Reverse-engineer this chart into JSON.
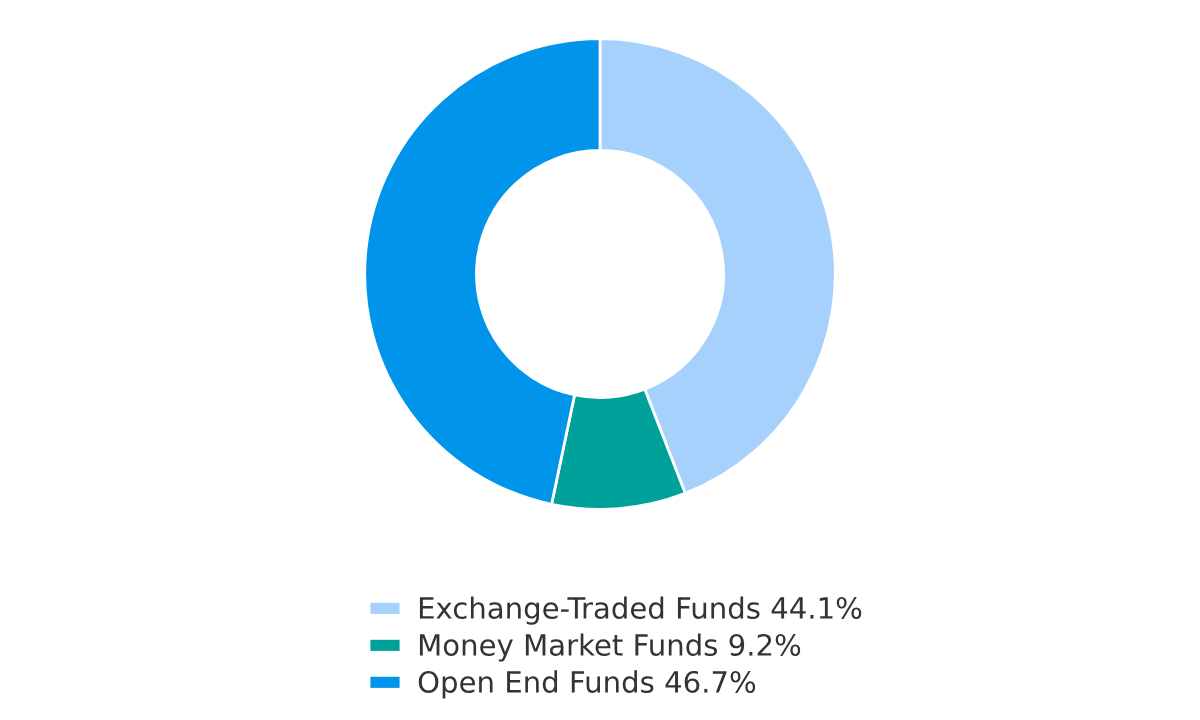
{
  "chart_data": {
    "type": "donut",
    "categories": [
      "Exchange-Traded Funds",
      "Money Market Funds",
      "Open End Funds"
    ],
    "values": [
      44.1,
      9.2,
      46.7
    ],
    "value_labels": [
      "44.1%",
      "9.2%",
      "46.7%"
    ],
    "colors": [
      "#a6d1fc",
      "#00a19a",
      "#0095eb"
    ],
    "legend": "bottom"
  }
}
